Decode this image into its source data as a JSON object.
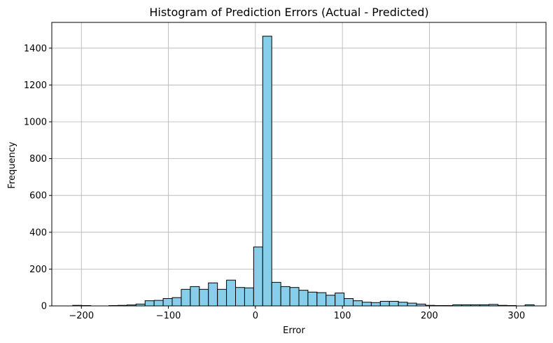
{
  "chart_data": {
    "type": "bar",
    "title": "Histogram of Prediction Errors (Actual - Predicted)",
    "xlabel": "Error",
    "ylabel": "Frequency",
    "xlim": [
      -234,
      334
    ],
    "ylim": [
      0,
      1540
    ],
    "grid": true,
    "bar_color": "#87ceeb",
    "edge_color": "#000000",
    "x_ticks": [
      -200,
      -100,
      0,
      100,
      200,
      300
    ],
    "x_tick_labels": [
      "−200",
      "−100",
      "0",
      "100",
      "200",
      "300"
    ],
    "y_ticks": [
      0,
      200,
      400,
      600,
      800,
      1000,
      1200,
      1400
    ],
    "y_tick_labels": [
      "0",
      "200",
      "400",
      "600",
      "800",
      "1000",
      "1200",
      "1400"
    ],
    "bin_start": -210,
    "bin_width": 10.4,
    "counts": [
      3,
      2,
      0,
      0,
      2,
      3,
      5,
      10,
      28,
      30,
      40,
      45,
      90,
      105,
      90,
      125,
      90,
      140,
      100,
      98,
      320,
      1465,
      128,
      105,
      100,
      85,
      75,
      72,
      58,
      70,
      40,
      28,
      20,
      18,
      25,
      25,
      20,
      15,
      10,
      3,
      2,
      2,
      6,
      6,
      6,
      6,
      8,
      3,
      2,
      0,
      6
    ]
  }
}
